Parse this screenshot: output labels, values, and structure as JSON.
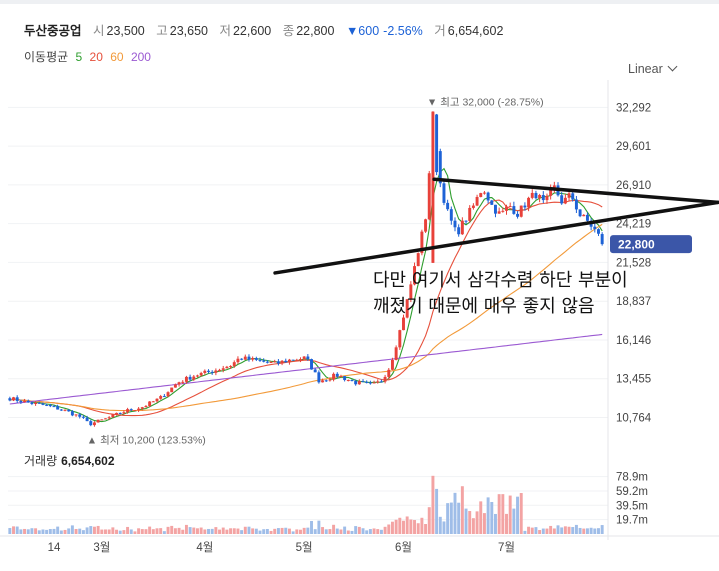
{
  "header": {
    "name": "두산중공업",
    "open_label": "시",
    "open": "23,500",
    "high_label": "고",
    "high": "23,650",
    "low_label": "저",
    "low": "22,600",
    "close_label": "종",
    "close": "22,800",
    "change": "▼600",
    "change_pct": "-2.56%",
    "volume_label": "거",
    "volume": "6,654,602"
  },
  "ma_legend": {
    "title": "이동평균",
    "periods": [
      {
        "label": "5",
        "color": "#2e9e2e"
      },
      {
        "label": "20",
        "color": "#e6503c"
      },
      {
        "label": "60",
        "color": "#f29a3a"
      },
      {
        "label": "200",
        "color": "#9b5ad2"
      }
    ]
  },
  "scale": {
    "label": "Linear"
  },
  "annotation": {
    "line1": "다만 여기서 삼각수렴 하단 부분이",
    "line2": "깨졌기 때문에 매우 좋지 않음"
  },
  "colors": {
    "up": "#e8413a",
    "down": "#1d62d6",
    "ma5": "#2e9e2e",
    "ma20": "#e6503c",
    "ma60": "#f29a3a",
    "ma200": "#9b5ad2",
    "vol_up": "#f3a3a3",
    "vol_down": "#9fbde8",
    "trendline": "#111111"
  },
  "chart_data": {
    "type": "candlestick",
    "y_axis_ticks": [
      "32,292",
      "29,601",
      "26,910",
      "24,219",
      "21,528",
      "18,837",
      "16,146",
      "13,455",
      "10,764"
    ],
    "y_range": [
      9200,
      33500
    ],
    "current_price": {
      "label": "22,800",
      "value": 22800
    },
    "max_marker": {
      "label": "최고 32,000 (-28.75%)",
      "value": 32000
    },
    "min_marker": {
      "label": "최저 10,200 (123.53%)",
      "value": 10200
    },
    "x_axis_labels": [
      "14",
      "3월",
      "4월",
      "5월",
      "6월",
      "7월"
    ],
    "volume": {
      "title": "거래량",
      "value": "6,654,602",
      "ticks": [
        "78.9m",
        "59.2m",
        "39.5m",
        "19.7m"
      ],
      "max": 88
    },
    "price_path": [
      [
        0,
        12100
      ],
      [
        4,
        11800
      ],
      [
        8,
        11600
      ],
      [
        12,
        11300
      ],
      [
        16,
        10800
      ],
      [
        18,
        10300
      ],
      [
        22,
        10700
      ],
      [
        26,
        11200
      ],
      [
        30,
        11500
      ],
      [
        34,
        12100
      ],
      [
        38,
        13200
      ],
      [
        42,
        13700
      ],
      [
        46,
        14000
      ],
      [
        50,
        14400
      ],
      [
        52,
        14900
      ],
      [
        56,
        14700
      ],
      [
        60,
        14500
      ],
      [
        64,
        14800
      ],
      [
        67,
        14900
      ],
      [
        70,
        13300
      ],
      [
        74,
        13700
      ],
      [
        78,
        13200
      ],
      [
        82,
        13000
      ],
      [
        84,
        13300
      ],
      [
        86,
        14300
      ],
      [
        88,
        16500
      ],
      [
        90,
        19000
      ],
      [
        92,
        21800
      ],
      [
        94,
        24500
      ],
      [
        96,
        32000
      ],
      [
        97,
        27500
      ],
      [
        99,
        25000
      ],
      [
        101,
        23500
      ],
      [
        103,
        24500
      ],
      [
        105,
        25500
      ],
      [
        107,
        26800
      ],
      [
        109,
        25500
      ],
      [
        111,
        24800
      ],
      [
        113,
        25500
      ],
      [
        115,
        24900
      ],
      [
        117,
        25800
      ],
      [
        119,
        26300
      ],
      [
        121,
        25500
      ],
      [
        123,
        26800
      ],
      [
        125,
        25700
      ],
      [
        127,
        26200
      ],
      [
        129,
        24800
      ],
      [
        131,
        24300
      ],
      [
        133,
        23500
      ],
      [
        134,
        22800
      ]
    ],
    "trendlines": [
      {
        "from": [
          96,
          27300
        ],
        "to": [
          161,
          25700
        ]
      },
      {
        "from": [
          60,
          20800
        ],
        "to": [
          161,
          25700
        ]
      }
    ]
  }
}
